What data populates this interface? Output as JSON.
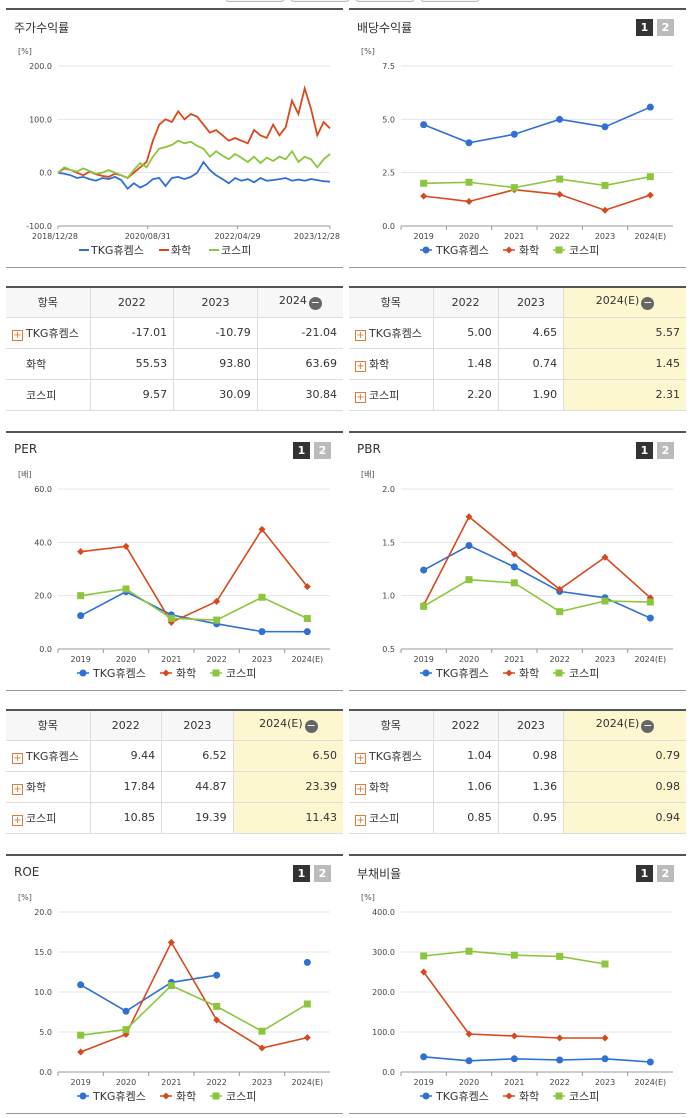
{
  "legend": [
    "TKG휴켐스",
    "화학",
    "코스피"
  ],
  "colors": {
    "tkg": "#2f6fd6",
    "chem": "#d9481c",
    "kospi": "#8cc63f"
  },
  "panels": {
    "stock_return": {
      "title": "주가수익률"
    },
    "dividend": {
      "title": "배당수익률",
      "btn1": "1",
      "btn2": "2"
    },
    "per": {
      "title": "PER",
      "btn1": "1",
      "btn2": "2"
    },
    "pbr": {
      "title": "PBR",
      "btn1": "1",
      "btn2": "2"
    },
    "roe": {
      "title": "ROE",
      "btn1": "1",
      "btn2": "2"
    },
    "debt": {
      "title": "부채비율",
      "btn1": "1",
      "btn2": "2"
    }
  },
  "chart_data": [
    {
      "id": "stock_return",
      "type": "line",
      "unit": "[%]",
      "ylim": [
        -100,
        200
      ],
      "yticks": [
        "200.0",
        "100.0",
        "0.0",
        "-100.0"
      ],
      "xticks": [
        "2018/12/28",
        "2020/08/31",
        "2022/04/29",
        "2023/12/28"
      ],
      "series": [
        {
          "name": "TKG휴켐스",
          "values": [
            0,
            -2,
            -5,
            -10,
            -8,
            -12,
            -15,
            -10,
            -12,
            -8,
            -14,
            -30,
            -20,
            -28,
            -22,
            -12,
            -10,
            -25,
            -10,
            -8,
            -12,
            -8,
            0,
            20,
            5,
            -5,
            -12,
            -20,
            -10,
            -15,
            -12,
            -18,
            -10,
            -15,
            -14,
            -12,
            -10,
            -15,
            -13,
            -15,
            -12,
            -14,
            -16,
            -17
          ]
        },
        {
          "name": "화학",
          "values": [
            0,
            8,
            5,
            0,
            -5,
            2,
            -3,
            -6,
            -8,
            -2,
            -5,
            -10,
            0,
            10,
            20,
            60,
            90,
            100,
            95,
            115,
            100,
            110,
            105,
            90,
            75,
            80,
            70,
            60,
            65,
            60,
            55,
            80,
            70,
            65,
            90,
            70,
            85,
            135,
            110,
            158,
            120,
            70,
            95,
            83
          ]
        },
        {
          "name": "코스피",
          "values": [
            0,
            10,
            5,
            2,
            8,
            3,
            -2,
            0,
            5,
            0,
            -5,
            -10,
            5,
            18,
            10,
            30,
            45,
            48,
            52,
            60,
            55,
            58,
            50,
            45,
            30,
            40,
            32,
            25,
            35,
            28,
            20,
            30,
            18,
            28,
            22,
            30,
            25,
            40,
            20,
            30,
            25,
            10,
            25,
            35
          ]
        }
      ]
    },
    {
      "id": "dividend",
      "type": "line",
      "unit": "[%]",
      "ylim": [
        0,
        7.5
      ],
      "yticks": [
        "7.5",
        "5.0",
        "2.5",
        "0.0"
      ],
      "categories": [
        "2019",
        "2020",
        "2021",
        "2022",
        "2023",
        "2024(E)"
      ],
      "series": [
        {
          "name": "TKG휴켐스",
          "values": [
            4.75,
            3.9,
            4.3,
            5.0,
            4.65,
            5.57
          ]
        },
        {
          "name": "화학",
          "values": [
            1.4,
            1.15,
            1.7,
            1.48,
            0.74,
            1.45
          ]
        },
        {
          "name": "코스피",
          "values": [
            2.0,
            2.05,
            1.8,
            2.2,
            1.9,
            2.31
          ]
        }
      ]
    },
    {
      "id": "per",
      "type": "line",
      "unit": "[배]",
      "ylim": [
        0,
        60
      ],
      "yticks": [
        "60.0",
        "40.0",
        "20.0",
        "0.0"
      ],
      "categories": [
        "2019",
        "2020",
        "2021",
        "2022",
        "2023",
        "2024(E)"
      ],
      "series": [
        {
          "name": "TKG휴켐스",
          "values": [
            12.5,
            21.5,
            12.8,
            9.44,
            6.52,
            6.5
          ]
        },
        {
          "name": "화학",
          "values": [
            36.5,
            38.5,
            10.0,
            17.84,
            44.87,
            23.39
          ]
        },
        {
          "name": "코스피",
          "values": [
            20.0,
            22.5,
            11.5,
            10.85,
            19.39,
            11.43
          ]
        }
      ]
    },
    {
      "id": "pbr",
      "type": "line",
      "unit": "[배]",
      "ylim": [
        0.5,
        2.0
      ],
      "yticks": [
        "2.0",
        "1.5",
        "1.0",
        "0.5"
      ],
      "categories": [
        "2019",
        "2020",
        "2021",
        "2022",
        "2023",
        "2024(E)"
      ],
      "series": [
        {
          "name": "TKG휴켐스",
          "values": [
            1.24,
            1.47,
            1.27,
            1.04,
            0.98,
            0.79
          ]
        },
        {
          "name": "화학",
          "values": [
            0.91,
            1.74,
            1.39,
            1.06,
            1.36,
            0.98
          ]
        },
        {
          "name": "코스피",
          "values": [
            0.9,
            1.15,
            1.12,
            0.85,
            0.95,
            0.94
          ]
        }
      ]
    },
    {
      "id": "roe",
      "type": "line",
      "unit": "[%]",
      "ylim": [
        0,
        20
      ],
      "yticks": [
        "20.0",
        "15.0",
        "10.0",
        "5.0",
        "0.0"
      ],
      "categories": [
        "2019",
        "2020",
        "2021",
        "2022",
        "2023",
        "2024(E)"
      ],
      "series": [
        {
          "name": "TKG휴켐스",
          "values": [
            10.9,
            7.6,
            11.2,
            12.1,
            null,
            13.7
          ]
        },
        {
          "name": "화학",
          "values": [
            2.5,
            4.7,
            16.2,
            6.5,
            3.0,
            4.3
          ]
        },
        {
          "name": "코스피",
          "values": [
            4.6,
            5.3,
            10.8,
            8.2,
            5.1,
            8.5
          ]
        }
      ]
    },
    {
      "id": "debt",
      "type": "line",
      "unit": "[%]",
      "ylim": [
        0,
        400
      ],
      "yticks": [
        "400.0",
        "300.0",
        "200.0",
        "100.0",
        "0.0"
      ],
      "categories": [
        "2019",
        "2020",
        "2021",
        "2022",
        "2023",
        "2024(E)"
      ],
      "series": [
        {
          "name": "TKG휴켐스",
          "values": [
            38,
            28,
            33,
            30,
            33,
            25
          ]
        },
        {
          "name": "화학",
          "values": [
            250,
            95,
            90,
            85,
            85,
            null
          ]
        },
        {
          "name": "코스피",
          "values": [
            290,
            302,
            292,
            289,
            270,
            null
          ]
        }
      ]
    }
  ],
  "tables": {
    "stock_return": {
      "headers": [
        "항목",
        "2022",
        "2023",
        "2024"
      ],
      "rows": [
        {
          "label": "TKG휴켐스",
          "values": [
            "-17.01",
            "-10.79",
            "-21.04"
          ]
        },
        {
          "label": "화학",
          "values": [
            "55.53",
            "93.80",
            "63.69"
          ]
        },
        {
          "label": "코스피",
          "values": [
            "9.57",
            "30.09",
            "30.84"
          ]
        }
      ]
    },
    "dividend": {
      "headers": [
        "항목",
        "2022",
        "2023",
        "2024(E)"
      ],
      "rows": [
        {
          "label": "TKG휴켐스",
          "values": [
            "5.00",
            "4.65",
            "5.57"
          ]
        },
        {
          "label": "화학",
          "values": [
            "1.48",
            "0.74",
            "1.45"
          ]
        },
        {
          "label": "코스피",
          "values": [
            "2.20",
            "1.90",
            "2.31"
          ]
        }
      ]
    },
    "per": {
      "headers": [
        "항목",
        "2022",
        "2023",
        "2024(E)"
      ],
      "rows": [
        {
          "label": "TKG휴켐스",
          "values": [
            "9.44",
            "6.52",
            "6.50"
          ]
        },
        {
          "label": "화학",
          "values": [
            "17.84",
            "44.87",
            "23.39"
          ]
        },
        {
          "label": "코스피",
          "values": [
            "10.85",
            "19.39",
            "11.43"
          ]
        }
      ]
    },
    "pbr": {
      "headers": [
        "항목",
        "2022",
        "2023",
        "2024(E)"
      ],
      "rows": [
        {
          "label": "TKG휴켐스",
          "values": [
            "1.04",
            "0.98",
            "0.79"
          ]
        },
        {
          "label": "화학",
          "values": [
            "1.06",
            "1.36",
            "0.98"
          ]
        },
        {
          "label": "코스피",
          "values": [
            "0.85",
            "0.95",
            "0.94"
          ]
        }
      ]
    }
  }
}
